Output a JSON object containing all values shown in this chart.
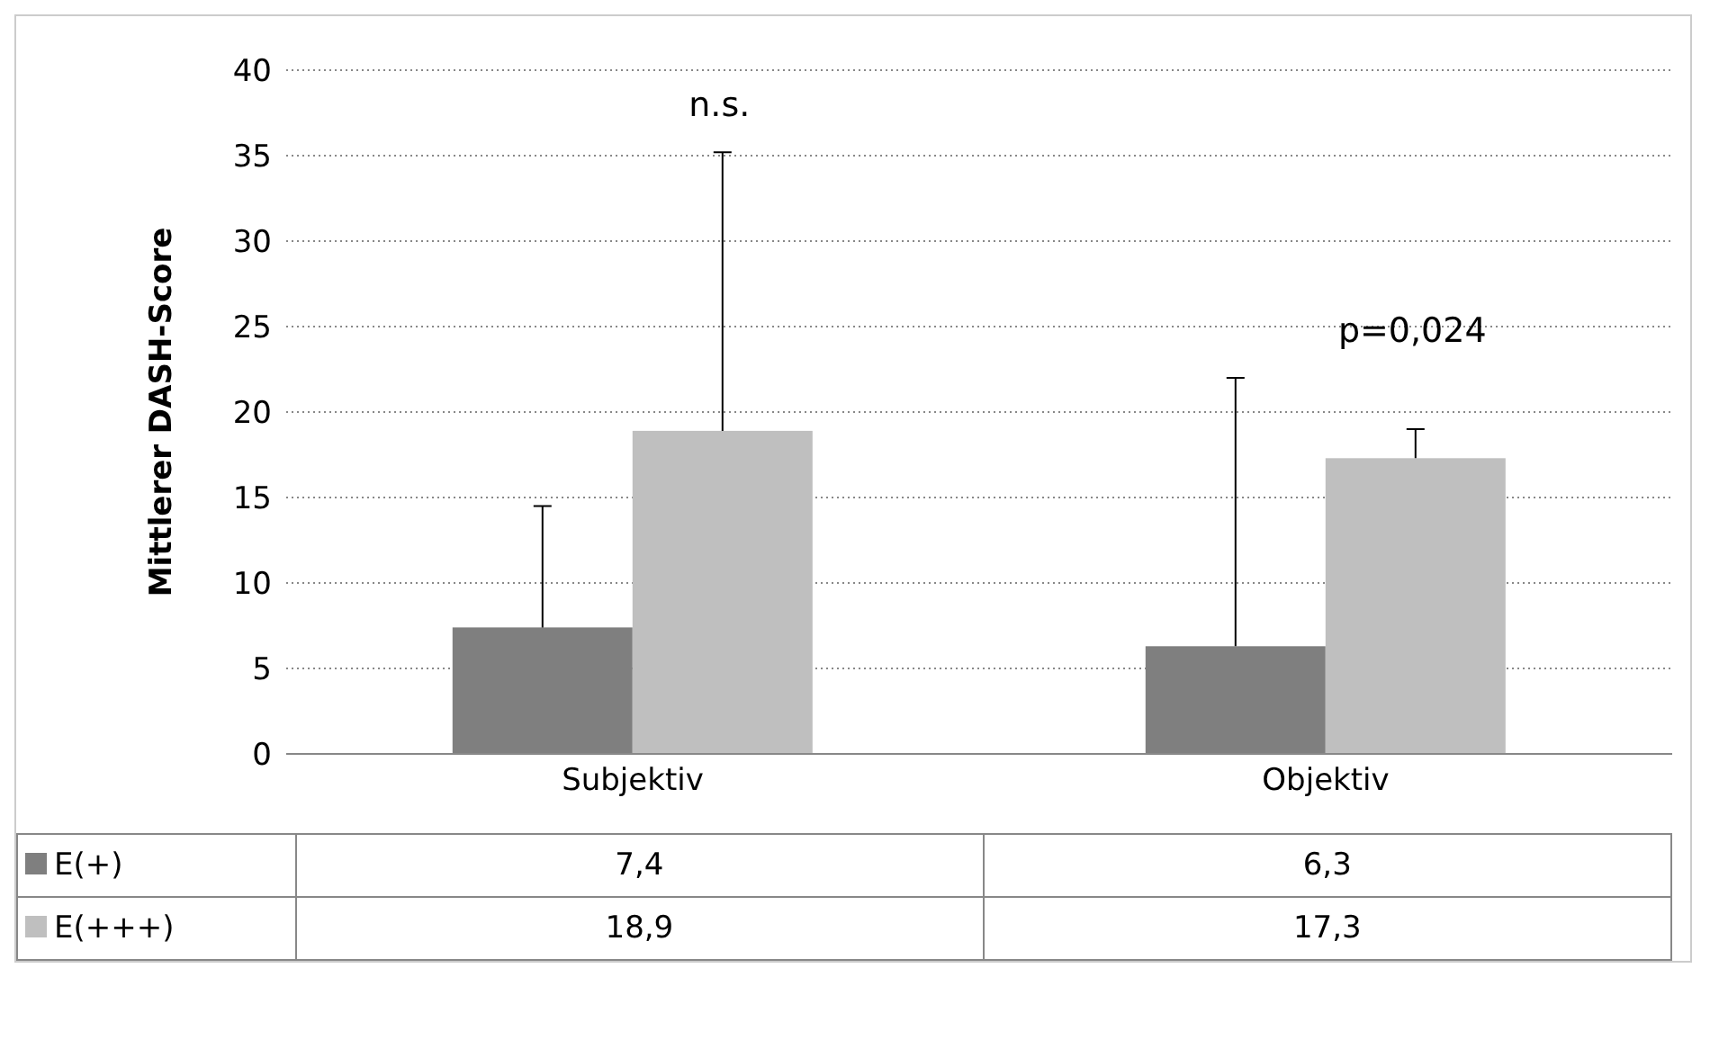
{
  "chart_data": {
    "type": "bar",
    "ylabel": "Mittlerer DASH-Score",
    "categories": [
      "Subjektiv",
      "Objektiv"
    ],
    "series": [
      {
        "name": "E(+)",
        "color": "#7f7f7f",
        "values": [
          7.4,
          6.3
        ],
        "value_labels": [
          "7,4",
          "6,3"
        ],
        "errors": [
          [
            7.4,
            14.5
          ],
          [
            6.3,
            22
          ]
        ]
      },
      {
        "name": "E(+++)",
        "color": "#bfbfbf",
        "values": [
          18.9,
          17.3
        ],
        "value_labels": [
          "18,9",
          "17,3"
        ],
        "errors": [
          [
            18.9,
            35.2
          ],
          [
            17.3,
            19
          ]
        ]
      }
    ],
    "ylim": [
      0,
      40
    ],
    "yticks": [
      0,
      5,
      10,
      15,
      20,
      25,
      30,
      35,
      40
    ],
    "grid": "y",
    "legend": "bottom",
    "annotations": [
      "n.s.",
      "p=0,024"
    ]
  }
}
